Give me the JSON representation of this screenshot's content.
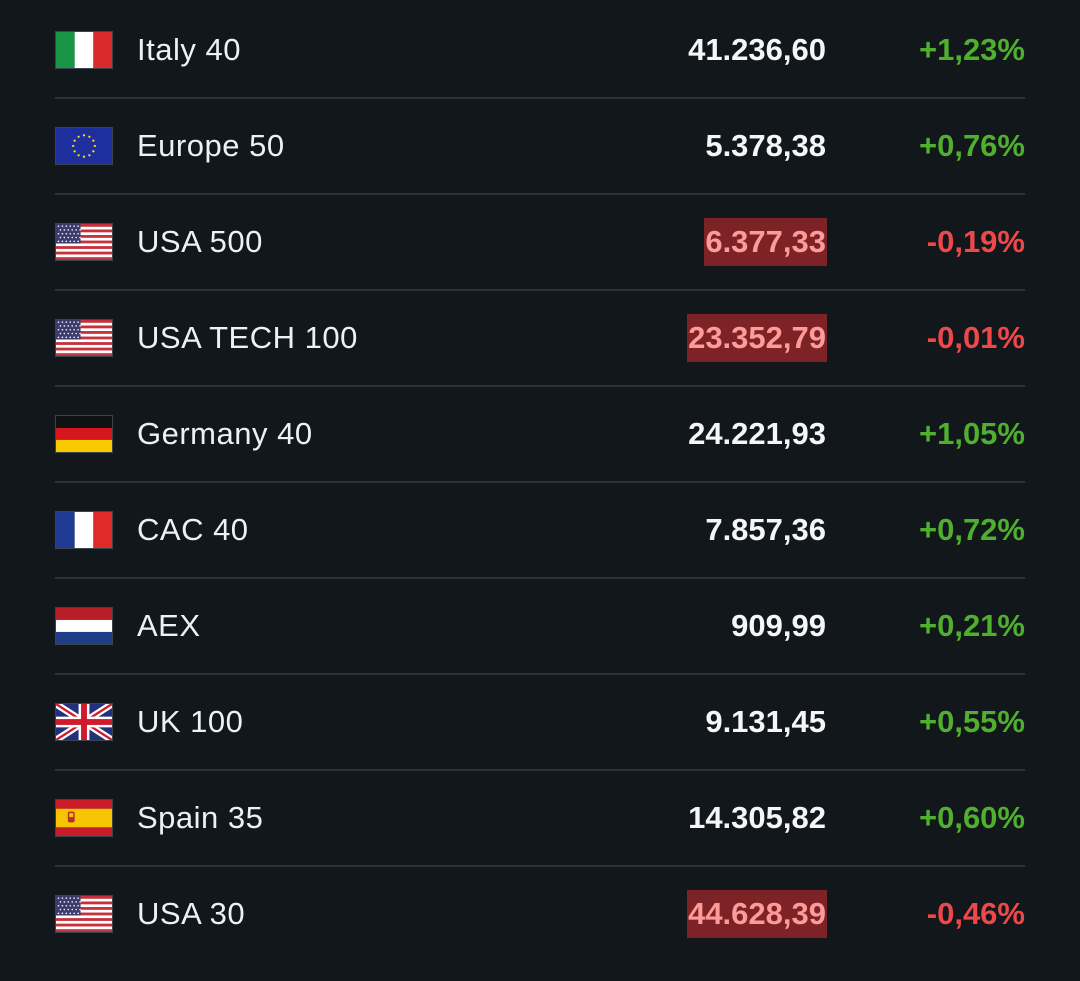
{
  "colors": {
    "background": "#12171b",
    "divider": "#28323a",
    "positive": "#4fb02e",
    "negative": "#f0484a",
    "highlight_bg": "#7d2327",
    "highlight_text": "#ff9a9a"
  },
  "indices": [
    {
      "flag": "italy-flag",
      "name": "Italy 40",
      "price": "41.236,60",
      "change": "+1,23%",
      "direction": "up",
      "highlight": false
    },
    {
      "flag": "eu-flag",
      "name": "Europe 50",
      "price": "5.378,38",
      "change": "+0,76%",
      "direction": "up",
      "highlight": false
    },
    {
      "flag": "usa-flag",
      "name": "USA 500",
      "price": "6.377,33",
      "change": "-0,19%",
      "direction": "down",
      "highlight": true
    },
    {
      "flag": "usa-flag",
      "name": "USA TECH 100",
      "price": "23.352,79",
      "change": "-0,01%",
      "direction": "down",
      "highlight": true
    },
    {
      "flag": "germany-flag",
      "name": "Germany 40",
      "price": "24.221,93",
      "change": "+1,05%",
      "direction": "up",
      "highlight": false
    },
    {
      "flag": "france-flag",
      "name": "CAC 40",
      "price": "7.857,36",
      "change": "+0,72%",
      "direction": "up",
      "highlight": false
    },
    {
      "flag": "netherlands-flag",
      "name": "AEX",
      "price": "909,99",
      "change": "+0,21%",
      "direction": "up",
      "highlight": false
    },
    {
      "flag": "uk-flag",
      "name": "UK 100",
      "price": "9.131,45",
      "change": "+0,55%",
      "direction": "up",
      "highlight": false
    },
    {
      "flag": "spain-flag",
      "name": "Spain 35",
      "price": "14.305,82",
      "change": "+0,60%",
      "direction": "up",
      "highlight": false
    },
    {
      "flag": "usa-flag",
      "name": "USA 30",
      "price": "44.628,39",
      "change": "-0,46%",
      "direction": "down",
      "highlight": true
    }
  ]
}
